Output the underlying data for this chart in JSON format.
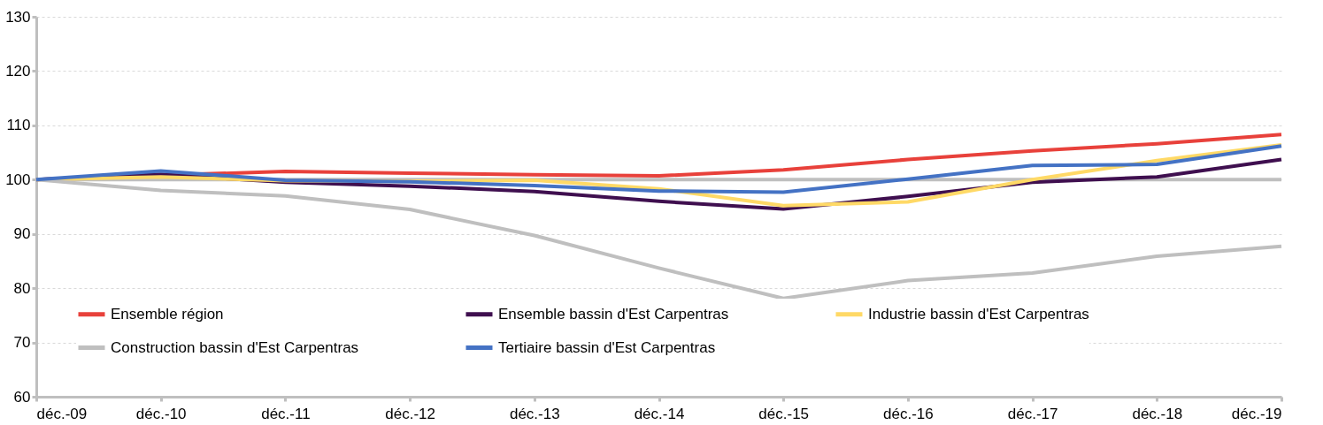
{
  "chart_data": {
    "type": "line",
    "categories": [
      "déc.-09",
      "déc.-10",
      "déc.-11",
      "déc.-12",
      "déc.-13",
      "déc.-14",
      "déc.-15",
      "déc.-16",
      "déc.-17",
      "déc.-18",
      "déc.-19"
    ],
    "series": [
      {
        "name": "Ensemble région",
        "color": "#e8413b",
        "values": [
          100,
          100.8,
          101.5,
          101.2,
          100.9,
          100.7,
          101.8,
          103.7,
          105.3,
          106.6,
          108.3
        ]
      },
      {
        "name": "Ensemble bassin d'Est Carpentras",
        "color": "#3f0f4f",
        "values": [
          100,
          101,
          99.5,
          98.8,
          97.8,
          96,
          94.6,
          96.9,
          99.5,
          100.5,
          103.7
        ]
      },
      {
        "name": "Industrie bassin d'Est Carpentras",
        "color": "#ffd966",
        "values": [
          100,
          100.5,
          99.8,
          99.7,
          99.9,
          98.3,
          95.2,
          95.9,
          100,
          103.5,
          106.4
        ]
      },
      {
        "name": "Construction bassin d'Est Carpentras",
        "color": "#bfbfbf",
        "values": [
          100,
          98,
          97,
          94.5,
          89.7,
          83.7,
          78.1,
          81.4,
          82.8,
          85.9,
          87.7
        ]
      },
      {
        "name": "Tertiaire bassin d'Est Carpentras",
        "color": "#4472c4",
        "values": [
          100,
          101.6,
          99.9,
          99.6,
          98.9,
          97.9,
          97.7,
          100.1,
          102.6,
          102.8,
          106.2
        ]
      }
    ],
    "ylim": [
      60,
      130
    ],
    "yticks": [
      60,
      70,
      80,
      90,
      100,
      110,
      120,
      130
    ],
    "ref_lines": [
      {
        "axis": "y",
        "value": 100,
        "color": "#bfbfbf"
      }
    ],
    "grid": "y",
    "legend": "bottom",
    "marker": "none",
    "line_style": "solid"
  }
}
